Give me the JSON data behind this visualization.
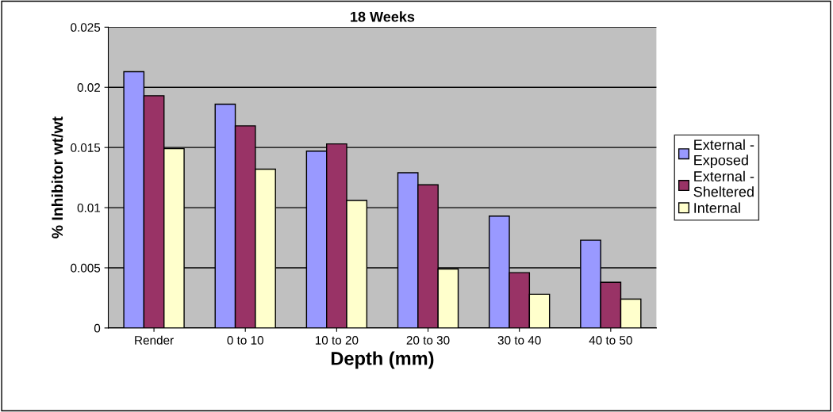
{
  "chart_data": {
    "type": "bar",
    "title": "18 Weeks",
    "xlabel": "Depth (mm)",
    "ylabel": "% Inhibitor wt/wt",
    "categories": [
      "Render",
      "0 to 10",
      "10 to 20",
      "20 to 30",
      "30 to 40",
      "40 to 50"
    ],
    "series": [
      {
        "name": "External -\nExposed",
        "color": "#9999ff",
        "values": [
          0.0213,
          0.0186,
          0.0147,
          0.0129,
          0.0093,
          0.0073
        ]
      },
      {
        "name": "External -\nSheltered",
        "color": "#993366",
        "values": [
          0.0193,
          0.0168,
          0.0153,
          0.0119,
          0.0046,
          0.0038
        ]
      },
      {
        "name": "Internal",
        "color": "#ffffcc",
        "values": [
          0.0149,
          0.0132,
          0.0106,
          0.0049,
          0.0028,
          0.0024
        ]
      }
    ],
    "ylim": [
      0,
      0.025
    ],
    "yticks": [
      0,
      0.005,
      0.01,
      0.015,
      0.02,
      0.025
    ],
    "grid": "y",
    "legend": "right"
  }
}
